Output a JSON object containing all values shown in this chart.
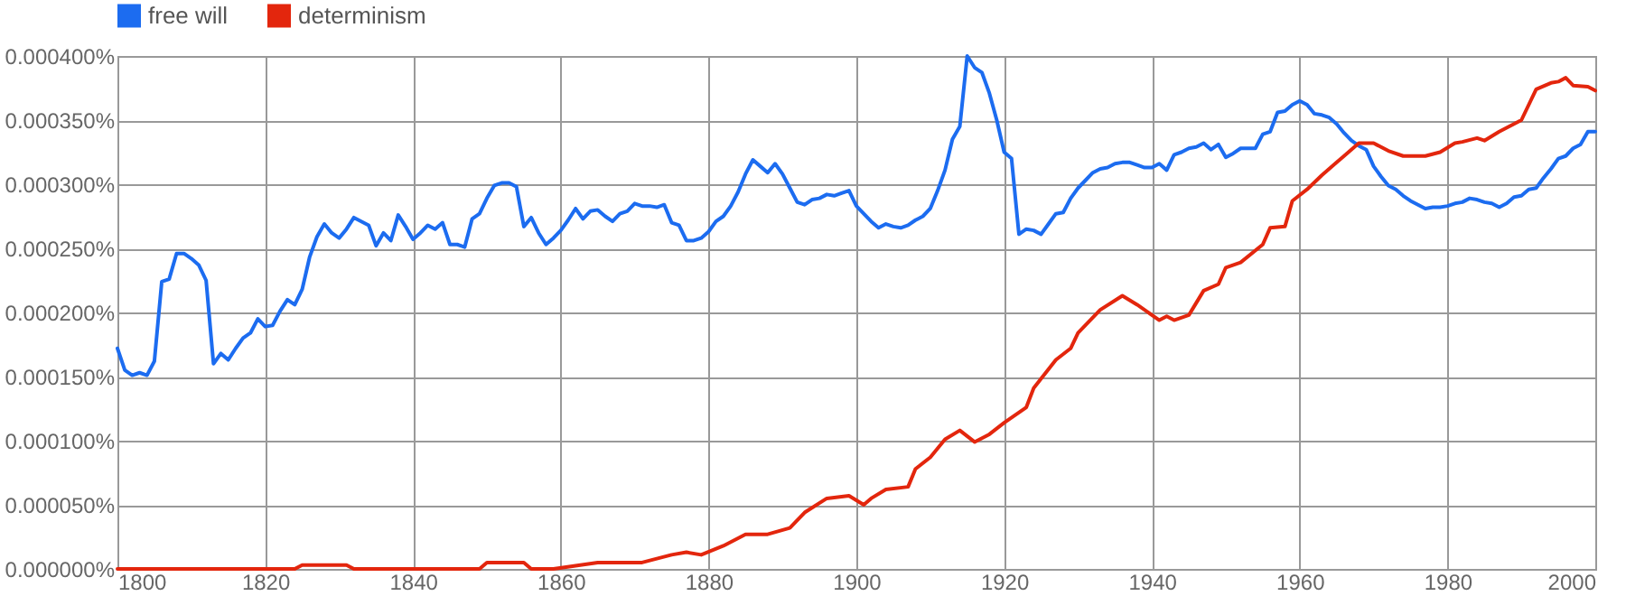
{
  "chart_data": {
    "type": "line",
    "xlim": [
      1800,
      2000
    ],
    "xticks": [
      1800,
      1820,
      1840,
      1860,
      1880,
      1900,
      1920,
      1940,
      1960,
      1980,
      2000
    ],
    "ylim": [
      0,
      0.0004
    ],
    "yticks": [
      {
        "value": 0,
        "label": "0.000000%"
      },
      {
        "value": 5e-05,
        "label": "0.000050%"
      },
      {
        "value": 0.0001,
        "label": "0.000100%"
      },
      {
        "value": 0.00015,
        "label": "0.000150%"
      },
      {
        "value": 0.0002,
        "label": "0.000200%"
      },
      {
        "value": 0.00025,
        "label": "0.000250%"
      },
      {
        "value": 0.0003,
        "label": "0.000300%"
      },
      {
        "value": 0.00035,
        "label": "0.000350%"
      },
      {
        "value": 0.0004,
        "label": "0.000400%"
      }
    ],
    "grid": true,
    "legend": "top",
    "marker": "none",
    "line_style": "solid",
    "series": [
      {
        "name": "free will",
        "color": "#1c6cf0",
        "x": [
          1800,
          1801,
          1802,
          1803,
          1804,
          1805,
          1806,
          1807,
          1808,
          1809,
          1810,
          1811,
          1812,
          1813,
          1814,
          1815,
          1816,
          1817,
          1818,
          1819,
          1820,
          1821,
          1822,
          1823,
          1824,
          1825,
          1826,
          1827,
          1828,
          1829,
          1830,
          1831,
          1832,
          1833,
          1834,
          1835,
          1836,
          1837,
          1838,
          1839,
          1840,
          1841,
          1842,
          1843,
          1844,
          1845,
          1846,
          1847,
          1848,
          1849,
          1850,
          1851,
          1852,
          1853,
          1854,
          1855,
          1856,
          1857,
          1858,
          1859,
          1860,
          1861,
          1862,
          1863,
          1864,
          1865,
          1866,
          1867,
          1868,
          1869,
          1870,
          1871,
          1872,
          1873,
          1874,
          1875,
          1876,
          1877,
          1878,
          1879,
          1880,
          1881,
          1882,
          1883,
          1884,
          1885,
          1886,
          1887,
          1888,
          1889,
          1890,
          1891,
          1892,
          1893,
          1894,
          1895,
          1896,
          1897,
          1898,
          1899,
          1900,
          1901,
          1902,
          1903,
          1904,
          1905,
          1906,
          1907,
          1908,
          1909,
          1910,
          1911,
          1912,
          1913,
          1914,
          1915,
          1916,
          1917,
          1918,
          1919,
          1920,
          1921,
          1922,
          1923,
          1924,
          1925,
          1926,
          1927,
          1928,
          1929,
          1930,
          1931,
          1932,
          1933,
          1934,
          1935,
          1936,
          1937,
          1938,
          1939,
          1940,
          1941,
          1942,
          1943,
          1944,
          1945,
          1946,
          1947,
          1948,
          1949,
          1950,
          1951,
          1952,
          1953,
          1954,
          1955,
          1956,
          1957,
          1958,
          1959,
          1960,
          1961,
          1962,
          1963,
          1964,
          1965,
          1966,
          1967,
          1968,
          1969,
          1970,
          1971,
          1972,
          1973,
          1974,
          1975,
          1976,
          1977,
          1978,
          1979,
          1980,
          1981,
          1982,
          1983,
          1984,
          1985,
          1986,
          1987,
          1988,
          1989,
          1990,
          1991,
          1992,
          1993,
          1994,
          1995,
          1996,
          1997,
          1998,
          1999,
          2000
        ],
        "values": [
          0.000172,
          0.000155,
          0.000151,
          0.000153,
          0.000151,
          0.000162,
          0.000224,
          0.000226,
          0.000246,
          0.000246,
          0.000242,
          0.000237,
          0.000225,
          0.00016,
          0.000168,
          0.000163,
          0.000172,
          0.00018,
          0.000184,
          0.000195,
          0.000189,
          0.00019,
          0.000201,
          0.00021,
          0.000206,
          0.000218,
          0.000243,
          0.000259,
          0.000269,
          0.000262,
          0.000258,
          0.000265,
          0.000274,
          0.000271,
          0.000268,
          0.000252,
          0.000262,
          0.000256,
          0.000276,
          0.000267,
          0.000257,
          0.000262,
          0.000268,
          0.000265,
          0.00027,
          0.000253,
          0.000253,
          0.000251,
          0.000273,
          0.000277,
          0.000289,
          0.000299,
          0.000301,
          0.000301,
          0.000298,
          0.000267,
          0.000274,
          0.000262,
          0.000253,
          0.000258,
          0.000264,
          0.000272,
          0.000281,
          0.000273,
          0.000279,
          0.00028,
          0.000275,
          0.000271,
          0.000277,
          0.000279,
          0.000285,
          0.000283,
          0.000283,
          0.000282,
          0.000284,
          0.00027,
          0.000268,
          0.000256,
          0.000256,
          0.000258,
          0.000263,
          0.000271,
          0.000275,
          0.000283,
          0.000294,
          0.000308,
          0.000319,
          0.000314,
          0.000309,
          0.000316,
          0.000308,
          0.000297,
          0.000286,
          0.000284,
          0.000288,
          0.000289,
          0.000292,
          0.000291,
          0.000293,
          0.000295,
          0.000283,
          0.000277,
          0.000271,
          0.000266,
          0.000269,
          0.000267,
          0.000266,
          0.000268,
          0.000272,
          0.000275,
          0.000281,
          0.000295,
          0.000311,
          0.000335,
          0.000345,
          0.0004,
          0.000391,
          0.000387,
          0.000371,
          0.00035,
          0.000325,
          0.00032,
          0.000261,
          0.000265,
          0.000264,
          0.000261,
          0.000269,
          0.000277,
          0.000278,
          0.000289,
          0.000297,
          0.000303,
          0.000309,
          0.000312,
          0.000313,
          0.000316,
          0.000317,
          0.000317,
          0.000315,
          0.000313,
          0.000313,
          0.000316,
          0.000311,
          0.000323,
          0.000325,
          0.000328,
          0.000329,
          0.000332,
          0.000327,
          0.000331,
          0.000321,
          0.000324,
          0.000328,
          0.000328,
          0.000328,
          0.000339,
          0.000341,
          0.000356,
          0.000357,
          0.000362,
          0.000365,
          0.000362,
          0.000355,
          0.000354,
          0.000352,
          0.000347,
          0.00034,
          0.000334,
          0.00033,
          0.000327,
          0.000314,
          0.000306,
          0.000299,
          0.000296,
          0.000291,
          0.000287,
          0.000284,
          0.000281,
          0.000282,
          0.000282,
          0.000283,
          0.000285,
          0.000286,
          0.000289,
          0.000288,
          0.000286,
          0.000285,
          0.000282,
          0.000285,
          0.00029,
          0.000291,
          0.000296,
          0.000297,
          0.000305,
          0.000312,
          0.00032,
          0.000322,
          0.000328,
          0.000331,
          0.000341,
          0.000341
        ]
      },
      {
        "name": "determinism",
        "color": "#e3260d",
        "x": [
          1800,
          1805,
          1812,
          1820,
          1824,
          1825,
          1831,
          1832,
          1849,
          1850,
          1855,
          1856,
          1859,
          1865,
          1871,
          1875,
          1877,
          1879,
          1882,
          1885,
          1888,
          1891,
          1893,
          1896,
          1899,
          1901,
          1902,
          1904,
          1907,
          1908,
          1910,
          1912,
          1914,
          1916,
          1918,
          1920,
          1923,
          1924,
          1927,
          1929,
          1930,
          1933,
          1936,
          1938,
          1941,
          1942,
          1943,
          1945,
          1947,
          1949,
          1950,
          1952,
          1955,
          1956,
          1958,
          1959,
          1961,
          1963,
          1965,
          1966,
          1968,
          1970,
          1972,
          1974,
          1977,
          1979,
          1981,
          1982,
          1984,
          1985,
          1987,
          1990,
          1992,
          1994,
          1995,
          1996,
          1997,
          1999,
          2000
        ],
        "values": [
          0,
          0,
          0,
          0,
          0,
          3e-06,
          3e-06,
          0,
          0,
          5e-06,
          5e-06,
          0,
          0,
          5e-06,
          5e-06,
          1.1e-05,
          1.3e-05,
          1.1e-05,
          1.8e-05,
          2.7e-05,
          2.7e-05,
          3.2e-05,
          4.4e-05,
          5.5e-05,
          5.7e-05,
          5e-05,
          5.5e-05,
          6.2e-05,
          6.4e-05,
          7.8e-05,
          8.7e-05,
          0.000101,
          0.000108,
          9.9e-05,
          0.000105,
          0.000114,
          0.000126,
          0.000141,
          0.000163,
          0.000172,
          0.000184,
          0.000202,
          0.000213,
          0.000206,
          0.000194,
          0.000197,
          0.000194,
          0.000198,
          0.000217,
          0.000222,
          0.000235,
          0.000239,
          0.000253,
          0.000266,
          0.000267,
          0.000287,
          0.000296,
          0.000307,
          0.000317,
          0.000322,
          0.000332,
          0.000332,
          0.000326,
          0.000322,
          0.000322,
          0.000325,
          0.000332,
          0.000333,
          0.000336,
          0.000334,
          0.000341,
          0.00035,
          0.000374,
          0.000379,
          0.00038,
          0.000383,
          0.000377,
          0.000376,
          0.000373
        ]
      }
    ]
  }
}
